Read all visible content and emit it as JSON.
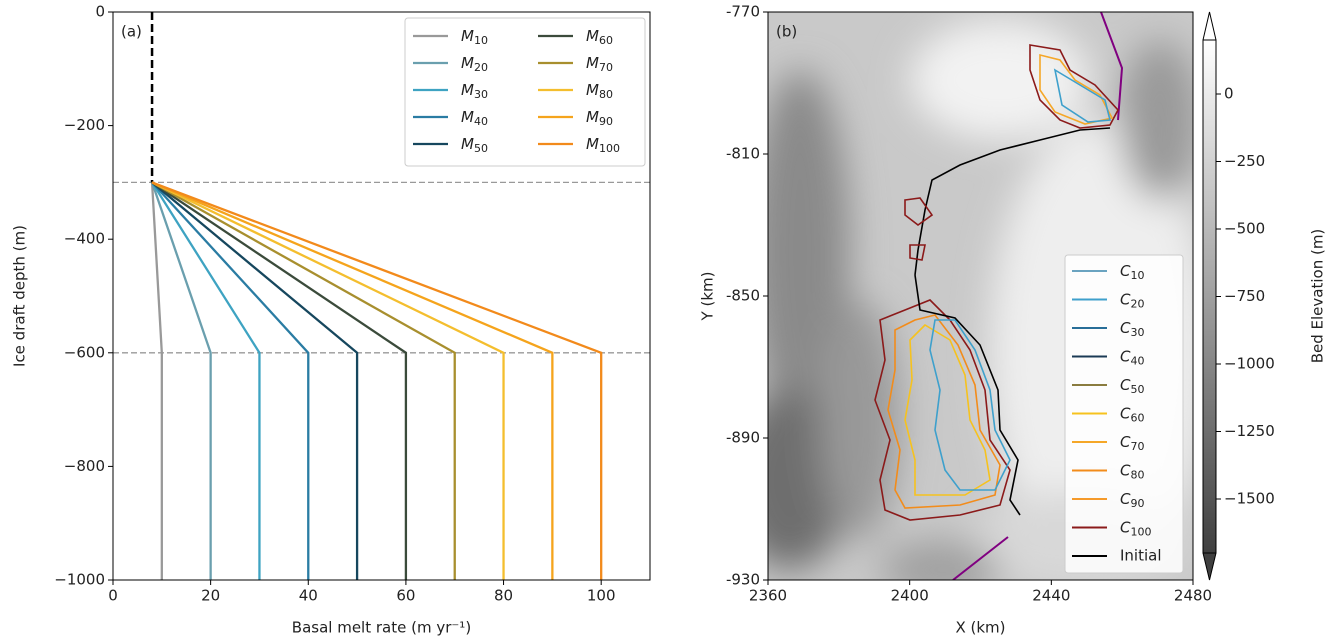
{
  "chart_data": [
    {
      "type": "line",
      "annotation": "(a)",
      "x_label": "Basal melt rate (m yr⁻¹)",
      "y_label": "Ice draft depth (m)",
      "xlim": [
        0,
        110
      ],
      "xticks": [
        0,
        20,
        40,
        60,
        80,
        100
      ],
      "ylim": [
        -1000,
        0
      ],
      "yticks": [
        {
          "value": -1000,
          "label": "−1000"
        },
        {
          "value": -800,
          "label": "−800"
        },
        {
          "value": -600,
          "label": "−600"
        },
        {
          "value": -400,
          "label": "−400"
        },
        {
          "value": -200,
          "label": "−200"
        },
        0
      ],
      "hlines": [
        -300,
        -600
      ],
      "vline": {
        "x": 8,
        "y": [
          0,
          -300
        ]
      },
      "series": [
        {
          "name": "M10",
          "color": "#999999",
          "x": [
            8,
            10,
            10
          ],
          "values": [
            -300,
            -600,
            -1000
          ]
        },
        {
          "name": "M20",
          "color": "#6a9fae",
          "x": [
            8,
            20,
            20
          ],
          "values": [
            -300,
            -600,
            -1000
          ]
        },
        {
          "name": "M30",
          "color": "#3ea3c2",
          "x": [
            8,
            30,
            30
          ],
          "values": [
            -300,
            -600,
            -1000
          ]
        },
        {
          "name": "M40",
          "color": "#2a7ca3",
          "x": [
            8,
            40,
            40
          ],
          "values": [
            -300,
            -600,
            -1000
          ]
        },
        {
          "name": "M50",
          "color": "#16475e",
          "x": [
            8,
            50,
            50
          ],
          "values": [
            -300,
            -600,
            -1000
          ]
        },
        {
          "name": "M60",
          "color": "#3b4b3b",
          "x": [
            8,
            60,
            60
          ],
          "values": [
            -300,
            -600,
            -1000
          ]
        },
        {
          "name": "M70",
          "color": "#a88f2e",
          "x": [
            8,
            70,
            70
          ],
          "values": [
            -300,
            -600,
            -1000
          ]
        },
        {
          "name": "M80",
          "color": "#f4be2e",
          "x": [
            8,
            80,
            80
          ],
          "values": [
            -300,
            -600,
            -1000
          ]
        },
        {
          "name": "M90",
          "color": "#f5a41c",
          "x": [
            8,
            90,
            90
          ],
          "values": [
            -300,
            -600,
            -1000
          ]
        },
        {
          "name": "M100",
          "color": "#f28a1b",
          "x": [
            8,
            100,
            100
          ],
          "values": [
            -300,
            -600,
            -1000
          ]
        }
      ]
    },
    {
      "type": "map",
      "annotation": "(b)",
      "x_label": "X (km)",
      "y_label": "Y (km)",
      "xlim": [
        2360,
        2480
      ],
      "xticks": [
        2360,
        2400,
        2440,
        2480
      ],
      "ylim": [
        -930,
        -770
      ],
      "yticks": [
        -930,
        -890,
        -850,
        -810,
        -770
      ],
      "colorbar": {
        "label": "Bed Elevation (m)",
        "lim": [
          -1700,
          200
        ],
        "ticks": [
          {
            "value": -1500,
            "label": "−1500"
          },
          {
            "value": -1250,
            "label": "−1250"
          },
          {
            "value": -1000,
            "label": "−1000"
          },
          {
            "value": -750,
            "label": "−750"
          },
          {
            "value": -500,
            "label": "−500"
          },
          {
            "value": -250,
            "label": "−250"
          },
          0
        ]
      },
      "legend": [
        {
          "name": "C10",
          "color": "#6aa3c0"
        },
        {
          "name": "C20",
          "color": "#3ea0cc"
        },
        {
          "name": "C30",
          "color": "#286e98"
        },
        {
          "name": "C40",
          "color": "#1b3a55"
        },
        {
          "name": "C50",
          "color": "#8a7c3f"
        },
        {
          "name": "C60",
          "color": "#f6c21e"
        },
        {
          "name": "C70",
          "color": "#f5a728"
        },
        {
          "name": "C80",
          "color": "#f28c1b"
        },
        {
          "name": "C90",
          "color": "#f59a2a"
        },
        {
          "name": "C100",
          "color": "#8b1a1a"
        },
        {
          "name": "Initial",
          "color": "#000000"
        }
      ]
    }
  ]
}
